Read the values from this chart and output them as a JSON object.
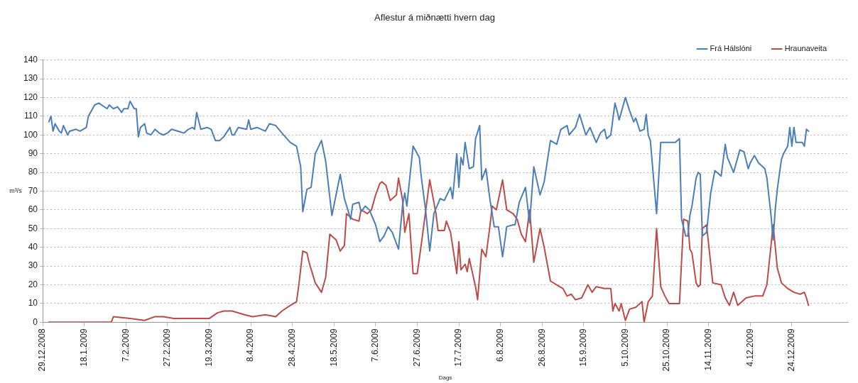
{
  "chart_data": {
    "type": "line",
    "title": "Aflestur á miðnætti hvern dag",
    "xlabel": "Dags",
    "ylabel": "m³/s",
    "xlim": [
      "2008-12-29",
      "2010-01-20"
    ],
    "xticks": [
      {
        "value": "2008-12-29",
        "label": "29.12.2008"
      },
      {
        "value": "2009-01-18",
        "label": "18.1.2009"
      },
      {
        "value": "2009-02-07",
        "label": "7.2.2009"
      },
      {
        "value": "2009-02-27",
        "label": "27.2.2009"
      },
      {
        "value": "2009-03-19",
        "label": "19.3.2009"
      },
      {
        "value": "2009-04-08",
        "label": "8.4.2009"
      },
      {
        "value": "2009-04-28",
        "label": "28.4.2009"
      },
      {
        "value": "2009-05-18",
        "label": "18.5.2009"
      },
      {
        "value": "2009-06-07",
        "label": "7.6.2009"
      },
      {
        "value": "2009-06-27",
        "label": "27.6.2009"
      },
      {
        "value": "2009-07-17",
        "label": "17.7.2009"
      },
      {
        "value": "2009-08-06",
        "label": "6.8.2009"
      },
      {
        "value": "2009-08-26",
        "label": "26.8.2009"
      },
      {
        "value": "2009-09-15",
        "label": "15.9.2009"
      },
      {
        "value": "2009-10-05",
        "label": "5.10.2009"
      },
      {
        "value": "2009-10-25",
        "label": "25.10.2009"
      },
      {
        "value": "2009-11-14",
        "label": "14.11.2009"
      },
      {
        "value": "2009-12-04",
        "label": "4.12.2009"
      },
      {
        "value": "2009-12-24",
        "label": "24.12.2009"
      }
    ],
    "ylim": [
      0,
      140
    ],
    "yticks": [
      0,
      10,
      20,
      30,
      40,
      50,
      60,
      70,
      80,
      90,
      100,
      110,
      120,
      130,
      140
    ],
    "grid": "y",
    "legend": "top right",
    "marker": "none",
    "line_style": "solid",
    "series": [
      {
        "name": "Frá Hálslóni",
        "color": "#4a7ebb",
        "x": [
          "2009-01-01",
          "2009-01-02",
          "2009-01-03",
          "2009-01-04",
          "2009-01-06",
          "2009-01-07",
          "2009-01-08",
          "2009-01-10",
          "2009-01-11",
          "2009-01-14",
          "2009-01-16",
          "2009-01-19",
          "2009-01-20",
          "2009-01-23",
          "2009-01-25",
          "2009-01-29",
          "2009-01-30",
          "2009-02-01",
          "2009-02-03",
          "2009-02-05",
          "2009-02-06",
          "2009-02-08",
          "2009-02-09",
          "2009-02-11",
          "2009-02-12",
          "2009-02-13",
          "2009-02-14",
          "2009-02-16",
          "2009-02-17",
          "2009-02-19",
          "2009-02-21",
          "2009-02-23",
          "2009-02-25",
          "2009-02-27",
          "2009-03-01",
          "2009-03-04",
          "2009-03-07",
          "2009-03-09",
          "2009-03-11",
          "2009-03-12",
          "2009-03-13",
          "2009-03-15",
          "2009-03-18",
          "2009-03-20",
          "2009-03-22",
          "2009-03-24",
          "2009-03-26",
          "2009-03-29",
          "2009-03-30",
          "2009-03-31",
          "2009-04-02",
          "2009-04-06",
          "2009-04-07",
          "2009-04-08",
          "2009-04-11",
          "2009-04-15",
          "2009-04-17",
          "2009-04-20",
          "2009-04-23",
          "2009-04-27",
          "2009-04-30",
          "2009-05-02",
          "2009-05-03",
          "2009-05-05",
          "2009-05-07",
          "2009-05-09",
          "2009-05-12",
          "2009-05-14",
          "2009-05-17",
          "2009-05-19",
          "2009-05-21",
          "2009-05-23",
          "2009-05-26",
          "2009-05-27",
          "2009-05-30",
          "2009-05-31",
          "2009-06-02",
          "2009-06-04",
          "2009-06-07",
          "2009-06-09",
          "2009-06-11",
          "2009-06-13",
          "2009-06-15",
          "2009-06-18",
          "2009-06-20",
          "2009-06-21",
          "2009-06-22",
          "2009-06-25",
          "2009-06-28",
          "2009-06-29",
          "2009-07-01",
          "2009-07-03",
          "2009-07-05",
          "2009-07-08",
          "2009-07-10",
          "2009-07-13",
          "2009-07-14",
          "2009-07-16",
          "2009-07-17",
          "2009-07-18",
          "2009-07-19",
          "2009-07-20",
          "2009-07-22",
          "2009-07-24",
          "2009-07-25",
          "2009-07-27",
          "2009-07-28",
          "2009-07-30",
          "2009-08-01",
          "2009-08-03",
          "2009-08-05",
          "2009-08-07",
          "2009-08-09",
          "2009-08-12",
          "2009-08-13",
          "2009-08-15",
          "2009-08-18",
          "2009-08-20",
          "2009-08-22",
          "2009-08-25",
          "2009-08-27",
          "2009-08-30",
          "2009-09-02",
          "2009-09-04",
          "2009-09-07",
          "2009-09-08",
          "2009-09-11",
          "2009-09-13",
          "2009-09-16",
          "2009-09-18",
          "2009-09-21",
          "2009-09-23",
          "2009-09-25",
          "2009-09-26",
          "2009-09-28",
          "2009-09-30",
          "2009-10-01",
          "2009-10-02",
          "2009-10-05",
          "2009-10-07",
          "2009-10-09",
          "2009-10-10",
          "2009-10-12",
          "2009-10-14",
          "2009-10-15",
          "2009-10-16",
          "2009-10-17",
          "2009-10-20",
          "2009-10-22",
          "2009-10-25",
          "2009-10-29",
          "2009-10-31",
          "2009-11-01",
          "2009-11-03",
          "2009-11-04",
          "2009-11-05",
          "2009-11-06",
          "2009-11-08",
          "2009-11-09",
          "2009-11-10",
          "2009-11-11",
          "2009-11-13",
          "2009-11-15",
          "2009-11-17",
          "2009-11-20",
          "2009-11-22",
          "2009-11-23",
          "2009-11-26",
          "2009-11-29",
          "2009-12-01",
          "2009-12-03",
          "2009-12-04",
          "2009-12-06",
          "2009-12-08",
          "2009-12-11",
          "2009-12-12",
          "2009-12-14",
          "2009-12-15",
          "2009-12-16",
          "2009-12-17",
          "2009-12-19",
          "2009-12-20",
          "2009-12-22",
          "2009-12-23",
          "2009-12-24",
          "2009-12-25",
          "2009-12-26",
          "2009-12-29",
          "2009-12-30",
          "2009-12-31",
          "2010-01-01"
        ],
        "values": [
          107,
          110,
          102,
          106,
          102,
          101,
          105,
          100,
          102,
          103,
          102,
          104,
          110,
          116,
          117,
          114,
          116,
          114,
          115,
          112,
          114,
          114,
          118,
          114,
          114,
          99,
          104,
          106,
          101,
          100,
          103,
          101,
          100,
          101,
          103,
          102,
          101,
          103,
          104,
          103,
          112,
          103,
          104,
          103,
          97,
          97,
          99,
          104,
          100,
          100,
          104,
          103,
          108,
          103,
          104,
          102,
          106,
          105,
          101,
          96,
          94,
          83,
          59,
          71,
          72,
          90,
          97,
          86,
          57,
          68,
          79,
          66,
          55,
          63,
          64,
          59,
          62,
          60,
          52,
          43,
          46,
          51,
          48,
          39,
          63,
          69,
          62,
          94,
          88,
          77,
          60,
          38,
          58,
          66,
          65,
          72,
          66,
          90,
          72,
          88,
          84,
          96,
          82,
          83,
          98,
          105,
          76,
          82,
          65,
          51,
          51,
          35,
          51,
          52,
          52,
          64,
          72,
          53,
          83,
          68,
          75,
          97,
          95,
          103,
          105,
          100,
          104,
          111,
          100,
          104,
          96,
          101,
          103,
          98,
          100,
          117,
          113,
          108,
          120,
          113,
          107,
          109,
          102,
          103,
          111,
          100,
          97,
          58,
          96,
          96,
          96,
          98,
          55,
          46,
          46,
          57,
          62,
          77,
          80,
          79,
          46,
          48,
          69,
          81,
          78,
          95,
          88,
          80,
          92,
          91,
          82,
          85,
          89,
          85,
          82,
          77,
          57,
          44,
          60,
          71,
          87,
          90,
          94,
          104,
          94,
          104,
          96,
          96,
          94,
          103,
          102
        ]
      },
      {
        "name": "Hraunaveita",
        "color": "#be4b48",
        "x": [
          "2009-01-01",
          "2009-01-31",
          "2009-02-01",
          "2009-02-09",
          "2009-02-16",
          "2009-02-21",
          "2009-02-25",
          "2009-03-02",
          "2009-03-08",
          "2009-03-12",
          "2009-03-15",
          "2009-03-19",
          "2009-03-23",
          "2009-03-26",
          "2009-03-30",
          "2009-04-05",
          "2009-04-09",
          "2009-04-15",
          "2009-04-20",
          "2009-04-23",
          "2009-04-27",
          "2009-04-30",
          "2009-05-01",
          "2009-05-03",
          "2009-05-05",
          "2009-05-06",
          "2009-05-09",
          "2009-05-12",
          "2009-05-14",
          "2009-05-16",
          "2009-05-19",
          "2009-05-21",
          "2009-05-23",
          "2009-05-24",
          "2009-05-27",
          "2009-05-30",
          "2009-05-31",
          "2009-06-03",
          "2009-06-05",
          "2009-06-07",
          "2009-06-09",
          "2009-06-10",
          "2009-06-12",
          "2009-06-14",
          "2009-06-17",
          "2009-06-18",
          "2009-06-20",
          "2009-06-21",
          "2009-06-23",
          "2009-06-25",
          "2009-06-27",
          "2009-06-29",
          "2009-07-03",
          "2009-07-06",
          "2009-07-07",
          "2009-07-10",
          "2009-07-11",
          "2009-07-13",
          "2009-07-16",
          "2009-07-17",
          "2009-07-18",
          "2009-07-20",
          "2009-07-21",
          "2009-07-22",
          "2009-07-25",
          "2009-07-26",
          "2009-07-28",
          "2009-07-30",
          "2009-08-01",
          "2009-08-02",
          "2009-08-04",
          "2009-08-07",
          "2009-08-09",
          "2009-08-12",
          "2009-08-14",
          "2009-08-16",
          "2009-08-18",
          "2009-08-20",
          "2009-08-22",
          "2009-08-25",
          "2009-08-27",
          "2009-08-30",
          "2009-09-02",
          "2009-09-05",
          "2009-09-07",
          "2009-09-09",
          "2009-09-11",
          "2009-09-14",
          "2009-09-17",
          "2009-09-19",
          "2009-09-21",
          "2009-09-25",
          "2009-09-28",
          "2009-09-29",
          "2009-09-30",
          "2009-10-02",
          "2009-10-03",
          "2009-10-05",
          "2009-10-07",
          "2009-10-10",
          "2009-10-13",
          "2009-10-14",
          "2009-10-16",
          "2009-10-18",
          "2009-10-20",
          "2009-10-22",
          "2009-10-24",
          "2009-10-26",
          "2009-10-29",
          "2009-10-31",
          "2009-11-02",
          "2009-11-04",
          "2009-11-05",
          "2009-11-06",
          "2009-11-08",
          "2009-11-09",
          "2009-11-10",
          "2009-11-11",
          "2009-11-13",
          "2009-11-16",
          "2009-11-20",
          "2009-11-22",
          "2009-11-24",
          "2009-11-26",
          "2009-11-28",
          "2009-12-02",
          "2009-12-06",
          "2009-12-10",
          "2009-12-12",
          "2009-12-15",
          "2009-12-17",
          "2009-12-19",
          "2009-12-22",
          "2009-12-25",
          "2009-12-28",
          "2009-12-30",
          "2009-12-31",
          "2010-01-01"
        ],
        "values": [
          0,
          0,
          3,
          2,
          1,
          3,
          3,
          2,
          2,
          2,
          2,
          2,
          5,
          6,
          6,
          4,
          3,
          4,
          3,
          6,
          9,
          11,
          19,
          38,
          37,
          32,
          21,
          16,
          24,
          47,
          44,
          38,
          41,
          58,
          55,
          54,
          60,
          58,
          60,
          68,
          74,
          75,
          73,
          65,
          68,
          77,
          65,
          48,
          58,
          26,
          26,
          42,
          76,
          58,
          49,
          49,
          54,
          48,
          26,
          43,
          28,
          31,
          27,
          34,
          19,
          12,
          39,
          35,
          52,
          62,
          60,
          76,
          60,
          58,
          55,
          47,
          43,
          60,
          32,
          50,
          40,
          22,
          20,
          18,
          14,
          15,
          12,
          13,
          20,
          16,
          19,
          18,
          18,
          6,
          10,
          6,
          10,
          1,
          7,
          8,
          11,
          0,
          11,
          14,
          50,
          19,
          14,
          10,
          10,
          10,
          55,
          54,
          39,
          37,
          21,
          19,
          20,
          50,
          52,
          21,
          20,
          13,
          9,
          16,
          9,
          13,
          14,
          14,
          20,
          52,
          29,
          21,
          18,
          16,
          15,
          16,
          13,
          9
        ]
      }
    ]
  }
}
